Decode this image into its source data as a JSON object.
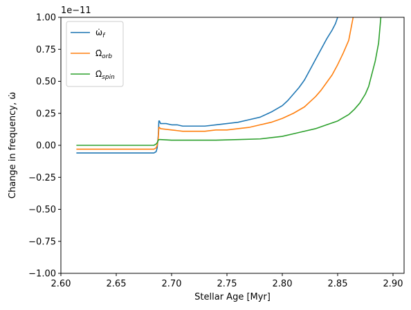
{
  "chart_data": {
    "type": "line",
    "title": "",
    "xlabel": "Stellar Age [Myr]",
    "ylabel": "Change in frequency, ω̇",
    "offset_text": "1e−11",
    "xlim": [
      2.6,
      2.91
    ],
    "ylim": [
      -1.0,
      1.0
    ],
    "x_ticks": [
      "2.60",
      "2.65",
      "2.70",
      "2.75",
      "2.80",
      "2.85",
      "2.90"
    ],
    "x_tick_values": [
      2.6,
      2.65,
      2.7,
      2.75,
      2.8,
      2.85,
      2.9
    ],
    "y_ticks": [
      "−1.00",
      "−0.75",
      "−0.50",
      "−0.25",
      "0.00",
      "0.25",
      "0.50",
      "0.75",
      "1.00"
    ],
    "y_tick_values": [
      -1.0,
      -0.75,
      -0.5,
      -0.25,
      0.0,
      0.25,
      0.5,
      0.75,
      1.0
    ],
    "grid": false,
    "legend_position": "top-left",
    "series": [
      {
        "name": "ω̇_f",
        "label_main": "ω̇",
        "label_sub": "f",
        "color": "#1f77b4",
        "x": [
          2.614,
          2.684,
          2.686,
          2.687,
          2.688,
          2.6885,
          2.689,
          2.69,
          2.695,
          2.7,
          2.705,
          2.71,
          2.72,
          2.73,
          2.74,
          2.75,
          2.76,
          2.77,
          2.78,
          2.79,
          2.8,
          2.805,
          2.81,
          2.815,
          2.82,
          2.825,
          2.83,
          2.835,
          2.84,
          2.845,
          2.848,
          2.85
        ],
        "y": [
          -0.06,
          -0.06,
          -0.05,
          -0.02,
          0.08,
          0.19,
          0.19,
          0.17,
          0.17,
          0.16,
          0.16,
          0.15,
          0.15,
          0.15,
          0.16,
          0.17,
          0.18,
          0.2,
          0.22,
          0.26,
          0.31,
          0.35,
          0.4,
          0.45,
          0.51,
          0.59,
          0.67,
          0.75,
          0.83,
          0.9,
          0.95,
          1.0
        ]
      },
      {
        "name": "Ω̇_orb",
        "label_main": "Ω̇",
        "label_sub": "orb",
        "color": "#ff7f0e",
        "x": [
          2.614,
          2.684,
          2.686,
          2.687,
          2.688,
          2.6885,
          2.689,
          2.69,
          2.7,
          2.71,
          2.72,
          2.73,
          2.74,
          2.75,
          2.76,
          2.77,
          2.78,
          2.79,
          2.8,
          2.81,
          2.82,
          2.825,
          2.83,
          2.835,
          2.84,
          2.845,
          2.85,
          2.855,
          2.86,
          2.864
        ],
        "y": [
          -0.03,
          -0.03,
          -0.02,
          0.0,
          0.06,
          0.14,
          0.14,
          0.13,
          0.12,
          0.11,
          0.11,
          0.11,
          0.12,
          0.12,
          0.13,
          0.14,
          0.16,
          0.18,
          0.21,
          0.25,
          0.3,
          0.34,
          0.38,
          0.43,
          0.49,
          0.55,
          0.63,
          0.72,
          0.82,
          1.0
        ]
      },
      {
        "name": "Ω̇_spin",
        "label_main": "Ω̇",
        "label_sub": "spin",
        "color": "#2ca02c",
        "x": [
          2.614,
          2.684,
          2.686,
          2.687,
          2.688,
          2.6885,
          2.69,
          2.7,
          2.72,
          2.74,
          2.76,
          2.78,
          2.8,
          2.81,
          2.82,
          2.83,
          2.84,
          2.85,
          2.86,
          2.865,
          2.87,
          2.875,
          2.878,
          2.881,
          2.884,
          2.887,
          2.889
        ],
        "y": [
          0.0,
          0.0,
          0.01,
          0.02,
          0.04,
          0.045,
          0.045,
          0.04,
          0.04,
          0.04,
          0.045,
          0.05,
          0.07,
          0.09,
          0.11,
          0.13,
          0.16,
          0.19,
          0.24,
          0.28,
          0.33,
          0.4,
          0.46,
          0.56,
          0.66,
          0.8,
          1.0
        ]
      }
    ]
  }
}
